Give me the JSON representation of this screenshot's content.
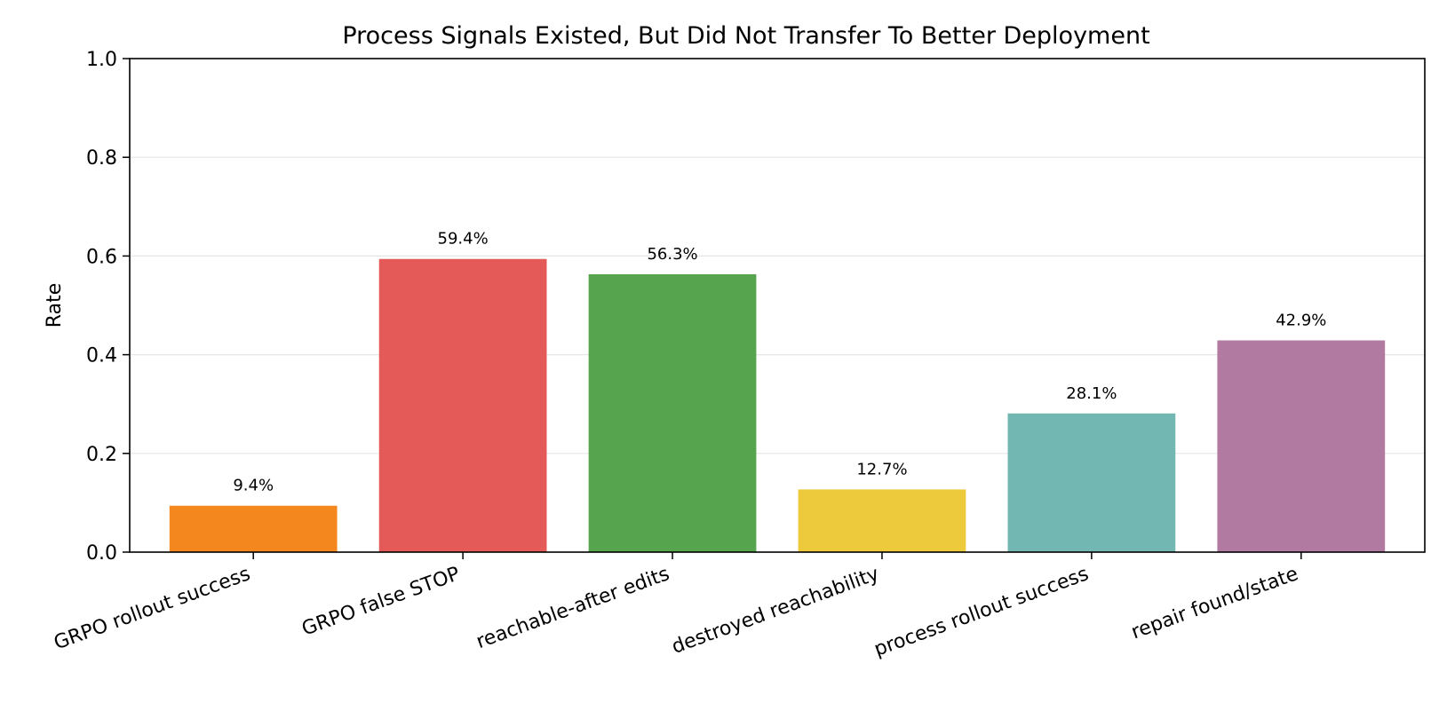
{
  "chart_data": {
    "type": "bar",
    "title": "Process Signals Existed, But Did Not Transfer To Better Deployment",
    "xlabel": "",
    "ylabel": "Rate",
    "ylim": [
      0,
      1.0
    ],
    "yticks": [
      0.0,
      0.2,
      0.4,
      0.6,
      0.8,
      1.0
    ],
    "ytick_labels": [
      "0.0",
      "0.2",
      "0.4",
      "0.6",
      "0.8",
      "1.0"
    ],
    "grid": "y-only",
    "categories": [
      "GRPO rollout success",
      "GRPO false STOP",
      "reachable-after edits",
      "destroyed reachability",
      "process rollout success",
      "repair found/state"
    ],
    "values": [
      0.094,
      0.594,
      0.563,
      0.127,
      0.281,
      0.429
    ],
    "value_labels": [
      "9.4%",
      "59.4%",
      "56.3%",
      "12.7%",
      "28.1%",
      "42.9%"
    ],
    "colors": [
      "#f5871f",
      "#e45a59",
      "#56a44d",
      "#edc93c",
      "#72b7b2",
      "#b07aa1"
    ]
  }
}
